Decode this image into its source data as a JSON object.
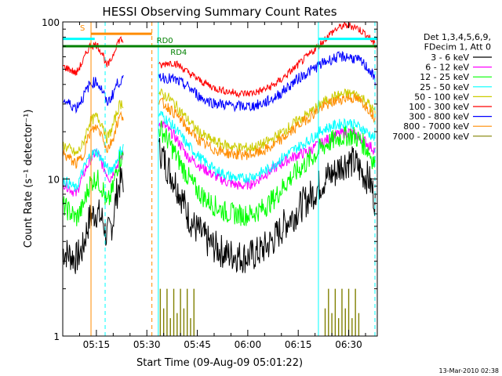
{
  "chart_data": {
    "type": "line",
    "title": "HESSI Observing Summary Count Rates",
    "xlabel": "Start Time (09-Aug-09 05:01:22)",
    "ylabel": "Count Rate (s⁻¹ detector⁻¹)",
    "yscale": "log",
    "xlim_minutes": [
      5.0,
      98.5
    ],
    "ylim": [
      1,
      100
    ],
    "x_ticks": [
      {
        "min": 15,
        "label": "05:15"
      },
      {
        "min": 30,
        "label": "05:30"
      },
      {
        "min": 45,
        "label": "05:45"
      },
      {
        "min": 60,
        "label": "06:00"
      },
      {
        "min": 75,
        "label": "06:15"
      },
      {
        "min": 90,
        "label": "06:30"
      }
    ],
    "y_ticks": [
      {
        "value": 1,
        "label": "1"
      },
      {
        "value": 10,
        "label": "10"
      },
      {
        "value": 100,
        "label": "100"
      }
    ],
    "legend_header": [
      "Det 1,3,4,5,6,9,",
      "FDecim 1, Att 0"
    ],
    "legend_placement": "right",
    "series": [
      {
        "name": "3 - 6 keV",
        "color": "#000000",
        "x": [
          5,
          7,
          9,
          11,
          13,
          15,
          17,
          18,
          19,
          20,
          21,
          22,
          34,
          36,
          38,
          40,
          42,
          44,
          46,
          48,
          50,
          52,
          54,
          56,
          58,
          60,
          62,
          64,
          66,
          68,
          70,
          72,
          74,
          76,
          78,
          80,
          82,
          84,
          86,
          88,
          90,
          92,
          94,
          96,
          98
        ],
        "y": [
          3.5,
          3.3,
          3.1,
          3.6,
          5.6,
          6.2,
          5.4,
          4.3,
          4.7,
          5.5,
          8,
          9.5,
          15,
          12,
          10,
          8,
          6,
          5,
          4.5,
          4,
          3.7,
          3.5,
          3.3,
          3.3,
          3.2,
          3.2,
          3.3,
          3.5,
          3.8,
          4.2,
          4.8,
          5.5,
          6,
          6.8,
          7.5,
          8.4,
          9.5,
          10.5,
          11,
          12.5,
          13,
          12.5,
          11,
          10,
          7
        ]
      },
      {
        "name": "6 - 12 keV",
        "color": "#ff00ff",
        "x": [
          5,
          9,
          13,
          15,
          17,
          19,
          21,
          22,
          34,
          38,
          42,
          46,
          50,
          54,
          58,
          62,
          66,
          70,
          74,
          78,
          82,
          86,
          90,
          94,
          98
        ],
        "y": [
          9.5,
          8,
          13,
          15,
          12,
          10,
          12,
          13.5,
          23,
          19,
          14,
          12,
          10.5,
          9.5,
          9,
          9.5,
          11,
          12.5,
          14,
          15,
          17,
          19,
          20,
          18,
          15
        ]
      },
      {
        "name": "12 - 25 keV",
        "color": "#00ff00",
        "x": [
          5,
          7,
          9,
          11,
          13,
          15,
          17,
          18,
          19,
          20,
          21,
          22,
          34,
          36,
          38,
          40,
          42,
          44,
          46,
          48,
          50,
          52,
          54,
          56,
          58,
          60,
          62,
          64,
          66,
          68,
          70,
          72,
          74,
          76,
          78,
          80,
          82,
          84,
          86,
          88,
          90,
          92,
          94,
          96,
          98
        ],
        "y": [
          6.8,
          6.2,
          5.6,
          6.6,
          9.3,
          10.2,
          8.6,
          6.8,
          7.5,
          8.8,
          11.5,
          13.5,
          21,
          18,
          15,
          12.5,
          10.5,
          9,
          8,
          7.3,
          6.8,
          6.4,
          6.1,
          6,
          5.9,
          5.9,
          6.1,
          6.4,
          6.9,
          7.6,
          8.6,
          9.8,
          10.8,
          11.9,
          13,
          14.3,
          15.8,
          17,
          17.8,
          18.6,
          19,
          18.6,
          17,
          15,
          12
        ]
      },
      {
        "name": "25 - 50 keV",
        "color": "#00ffff",
        "x": [
          5,
          9,
          13,
          15,
          17,
          19,
          21,
          22,
          34,
          38,
          42,
          46,
          50,
          54,
          58,
          62,
          66,
          70,
          74,
          78,
          82,
          86,
          90,
          94,
          98
        ],
        "y": [
          10,
          8.6,
          14,
          15,
          13,
          11,
          13,
          15,
          26,
          21.5,
          16.5,
          13.5,
          11.5,
          10.5,
          10,
          10.5,
          11.5,
          13.5,
          15.5,
          17.5,
          20.5,
          22,
          23,
          21,
          18
        ]
      },
      {
        "name": "50 - 100 keV",
        "color": "#cccc00",
        "x": [
          5,
          7,
          9,
          11,
          13,
          15,
          17,
          18,
          19,
          20,
          21,
          22,
          34,
          36,
          38,
          40,
          42,
          44,
          46,
          48,
          50,
          52,
          54,
          56,
          58,
          60,
          62,
          64,
          66,
          68,
          70,
          72,
          74,
          76,
          78,
          80,
          82,
          84,
          86,
          88,
          90,
          92,
          94,
          96,
          98
        ],
        "y": [
          16.5,
          15.5,
          14.3,
          16.5,
          23,
          25,
          22,
          18,
          19.5,
          22,
          26,
          30,
          35,
          33.5,
          30.5,
          27,
          24,
          21.5,
          19.5,
          18.3,
          17.3,
          16.8,
          16.3,
          16,
          15.8,
          15.8,
          16,
          16.5,
          17.3,
          18.3,
          19.7,
          21.2,
          22.8,
          24.5,
          26,
          28,
          30.5,
          32,
          33.5,
          34.5,
          35,
          34.5,
          33,
          30,
          26
        ]
      },
      {
        "name": "100 - 300 keV",
        "color": "#ff0000",
        "x": [
          5,
          7,
          9,
          11,
          13,
          15,
          17,
          18,
          19,
          20,
          21,
          22,
          34,
          36,
          38,
          40,
          42,
          44,
          46,
          48,
          50,
          52,
          54,
          56,
          58,
          60,
          62,
          64,
          66,
          68,
          70,
          72,
          74,
          76,
          78,
          80,
          82,
          84,
          86,
          88,
          90,
          92,
          94,
          96,
          98
        ],
        "y": [
          52,
          50,
          47,
          56,
          70,
          72,
          62,
          52,
          55,
          62,
          72,
          78,
          52,
          55,
          55,
          52,
          48,
          45,
          42,
          40,
          38,
          37,
          36,
          35.5,
          35,
          35,
          35.5,
          36.5,
          38,
          40,
          43,
          47,
          51,
          56,
          61,
          67,
          74,
          82,
          89,
          94,
          95,
          93,
          87,
          80,
          70
        ]
      },
      {
        "name": "300 - 800 keV",
        "color": "#0000ff",
        "x": [
          5,
          7,
          9,
          11,
          13,
          15,
          17,
          18,
          19,
          20,
          21,
          22,
          34,
          36,
          38,
          40,
          42,
          44,
          46,
          48,
          50,
          52,
          54,
          56,
          58,
          60,
          62,
          64,
          66,
          68,
          70,
          72,
          74,
          76,
          78,
          80,
          82,
          84,
          86,
          88,
          90,
          92,
          94,
          96,
          98
        ],
        "y": [
          32,
          30,
          28.5,
          33,
          40,
          42,
          36,
          30.5,
          32,
          35,
          40,
          42,
          45,
          44,
          43,
          41,
          39,
          36,
          33,
          31.5,
          30.5,
          30,
          29.5,
          29.3,
          29,
          29,
          29.3,
          30,
          31.3,
          33,
          35.5,
          38.5,
          42,
          45,
          48,
          51,
          54,
          57,
          59,
          60,
          60,
          58,
          55,
          50,
          42
        ]
      },
      {
        "name": "800 - 7000 keV",
        "color": "#ff8c00",
        "x": [
          5,
          7,
          9,
          11,
          13,
          15,
          17,
          18,
          19,
          20,
          21,
          22,
          34,
          36,
          38,
          40,
          42,
          44,
          46,
          48,
          50,
          52,
          54,
          56,
          58,
          60,
          62,
          64,
          66,
          68,
          70,
          72,
          74,
          76,
          78,
          80,
          82,
          84,
          86,
          88,
          90,
          92,
          94,
          96,
          98
        ],
        "y": [
          14.5,
          13.5,
          12.5,
          14,
          19.5,
          21.5,
          18.7,
          15.2,
          16.5,
          18.3,
          22,
          25,
          31,
          29,
          26.5,
          24,
          21,
          18.8,
          17.2,
          16.2,
          15.4,
          15,
          14.6,
          14.4,
          14.3,
          14.3,
          14.5,
          14.9,
          15.6,
          16.5,
          17.8,
          19.3,
          21,
          22.8,
          24.5,
          26.5,
          28.5,
          30,
          31.3,
          32.4,
          33,
          32.4,
          30.8,
          28,
          24
        ]
      },
      {
        "name": "7000 - 20000 keV",
        "color": "#808000",
        "x": [
          34,
          35,
          36,
          37,
          38,
          39,
          40,
          41,
          42,
          43,
          44,
          83,
          84,
          85,
          86,
          87,
          88,
          89,
          90,
          91,
          92,
          93
        ],
        "y": [
          2.0,
          1.5,
          2.0,
          1.3,
          2.0,
          1.4,
          2.0,
          1.5,
          2.0,
          1.3,
          2.0,
          1.5,
          2.0,
          1.4,
          2.0,
          1.3,
          2.0,
          1.5,
          2.0,
          1.3,
          2.0,
          1.4
        ]
      }
    ],
    "annotations": [
      {
        "label": "S",
        "color": "#ff8c00",
        "x_range": [
          13.4,
          31.5
        ],
        "y_value": 84
      },
      {
        "label": "RD0",
        "color": "#008000",
        "x_range": [
          31.5,
          98.5
        ],
        "y_value": 70
      },
      {
        "label": "RD4",
        "color": "#008000",
        "x_range": [
          5,
          44
        ],
        "y_value": 70
      },
      {
        "label": "",
        "color": "#00ffff",
        "x_range": [
          5,
          14.5
        ],
        "y_value": 78
      },
      {
        "label": "",
        "color": "#00ffff",
        "x_range": [
          81,
          98.5
        ],
        "y_value": 78
      }
    ],
    "vlines": [
      {
        "x": 5.0,
        "color": "#00ffff",
        "style": "solid"
      },
      {
        "x": 13.4,
        "color": "#ff8c00",
        "style": "solid"
      },
      {
        "x": 17.6,
        "color": "#00ffff",
        "style": "dashed"
      },
      {
        "x": 31.5,
        "color": "#ff8c00",
        "style": "dashed"
      },
      {
        "x": 33.4,
        "color": "#00ffff",
        "style": "solid"
      },
      {
        "x": 81.0,
        "color": "#00ffff",
        "style": "solid"
      },
      {
        "x": 97.8,
        "color": "#00ffff",
        "style": "dashed"
      }
    ],
    "gaps": [
      [
        23,
        33.5
      ]
    ],
    "footer_timestamp": "13-Mar-2010 02:38"
  }
}
